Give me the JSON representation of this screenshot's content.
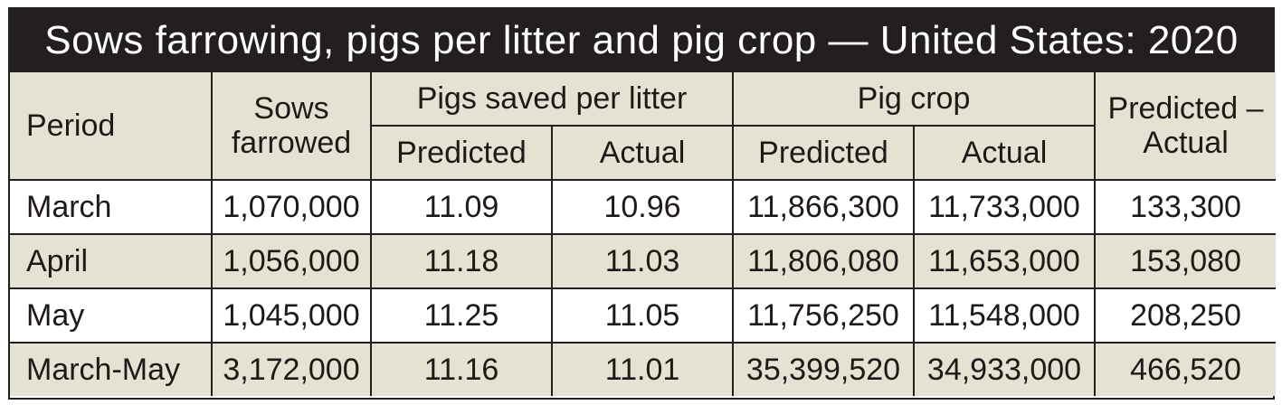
{
  "title": "Sows farrowing, pigs per litter and pig crop — United States: 2020",
  "headers": {
    "period": "Period",
    "sows_line1": "Sows",
    "sows_line2": "farrowed",
    "pigs_saved": "Pigs saved per litter",
    "pig_crop": "Pig crop",
    "diff_line1": "Predicted –",
    "diff_line2": "Actual",
    "predicted": "Predicted",
    "actual": "Actual"
  },
  "rows": [
    {
      "period": "March",
      "sows": "1,070,000",
      "pigs_pred": "11.09",
      "pigs_act": "10.96",
      "crop_pred": "11,866,300",
      "crop_act": "11,733,000",
      "diff": "133,300"
    },
    {
      "period": "April",
      "sows": "1,056,000",
      "pigs_pred": "11.18",
      "pigs_act": "11.03",
      "crop_pred": "11,806,080",
      "crop_act": "11,653,000",
      "diff": "153,080"
    },
    {
      "period": "May",
      "sows": "1,045,000",
      "pigs_pred": "11.25",
      "pigs_act": "11.05",
      "crop_pred": "11,756,250",
      "crop_act": "11,548,000",
      "diff": "208,250"
    },
    {
      "period": "March-May",
      "sows": "3,172,000",
      "pigs_pred": "11.16",
      "pigs_act": "11.01",
      "crop_pred": "35,399,520",
      "crop_act": "34,933,000",
      "diff": "466,520"
    }
  ],
  "colors": {
    "title_bg": "#231f20",
    "header_bg": "#e6e2d3",
    "row_alt_bg": "#e6e2d3",
    "border": "#231f20"
  }
}
